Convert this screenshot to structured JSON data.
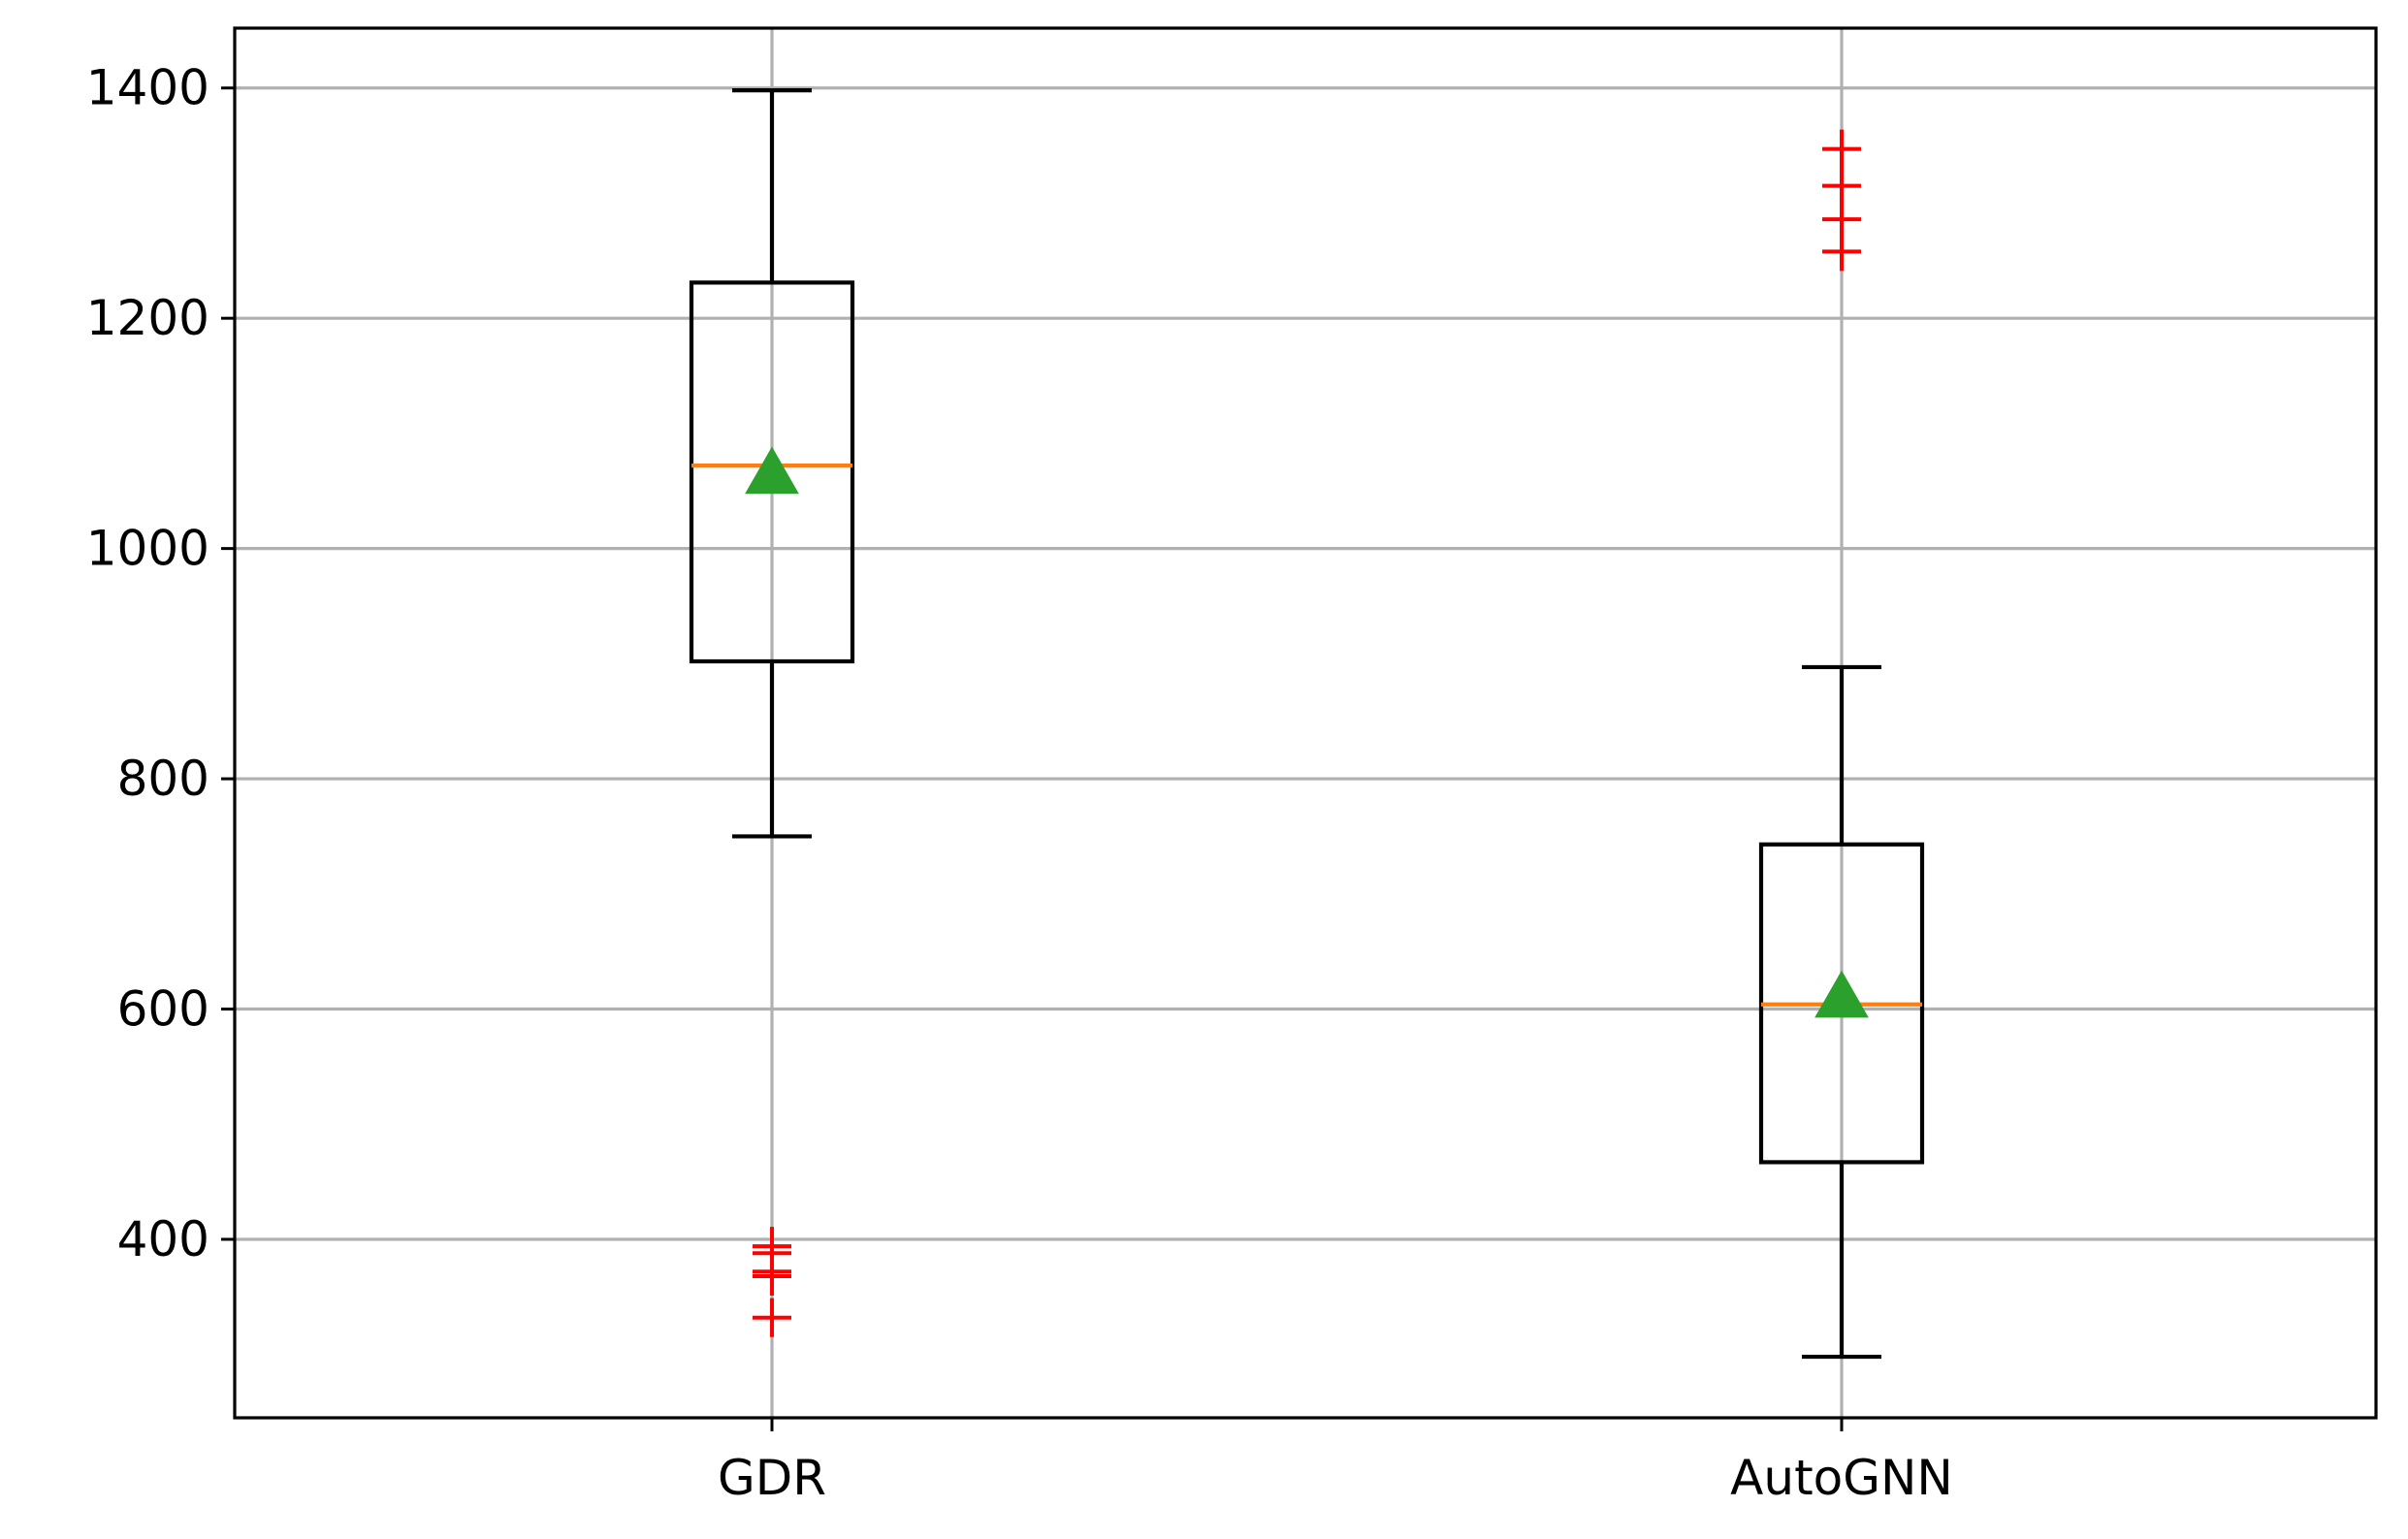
{
  "chart_data": {
    "type": "box",
    "categories": [
      "GDR",
      "AutoGNN"
    ],
    "ylim": [
      245,
      1452
    ],
    "yticks": [
      400,
      600,
      800,
      1000,
      1200,
      1400
    ],
    "grid": true,
    "title": "",
    "xlabel": "",
    "ylabel": "",
    "boxes": [
      {
        "name": "GDR",
        "whisker_low": 750,
        "q1": 902,
        "median": 1072,
        "mean": 1065,
        "q3": 1231,
        "whisker_high": 1398,
        "outliers": [
          332,
          368,
          372,
          388,
          394
        ]
      },
      {
        "name": "AutoGNN",
        "whisker_low": 298,
        "q1": 467,
        "median": 604,
        "mean": 610,
        "q3": 743,
        "whisker_high": 897,
        "outliers": [
          1258,
          1286,
          1315,
          1347
        ]
      }
    ],
    "colors": {
      "box": "#000000",
      "median": "#ff7f0e",
      "mean": "#2ca02c",
      "outlier": "#ff0000",
      "grid": "#b0b0b0"
    }
  }
}
